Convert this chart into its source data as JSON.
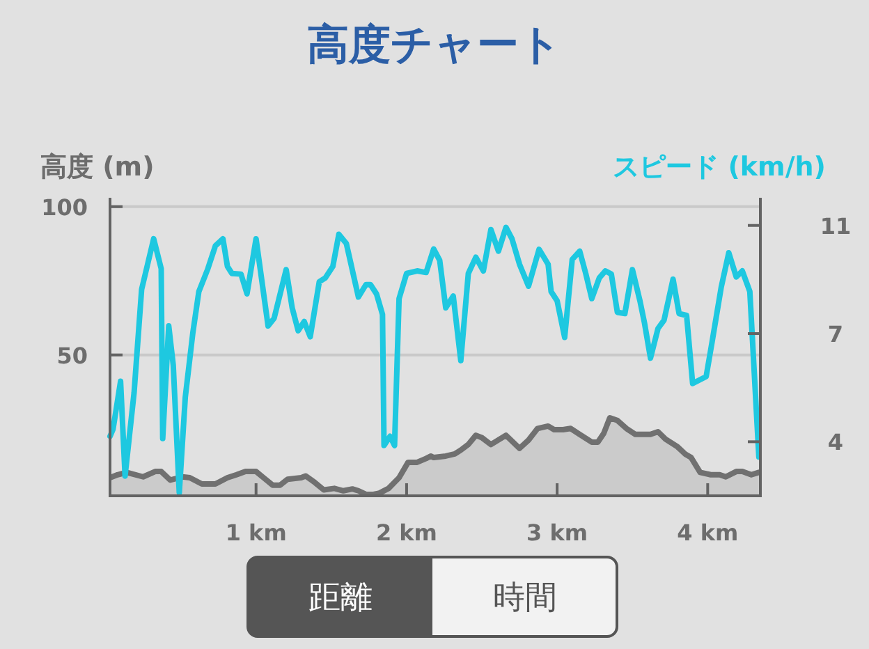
{
  "chart_data": {
    "type": "line",
    "title": "高度チャート",
    "ylabel": "高度 (m)",
    "y2label": "スピード (km/h)",
    "annotations": [
      "距離",
      "時間"
    ],
    "xlim": [
      0.03,
      4.35
    ],
    "xticks": [
      {
        "value": 1,
        "label": "1 km"
      },
      {
        "value": 2,
        "label": "2 km"
      },
      {
        "value": 3,
        "label": "3 km"
      },
      {
        "value": 4,
        "label": "4 km"
      }
    ],
    "ylim": [
      2.5,
      103
    ],
    "yticks": [
      50,
      100
    ],
    "y2lim": [
      2.3,
      11.67
    ],
    "y2ticks": [
      {
        "value": 4,
        "label": "4"
      },
      {
        "value": 7.4,
        "label": "7"
      },
      {
        "value": 10.8,
        "label": "11"
      }
    ],
    "grid": "y",
    "series": [
      {
        "type": "area",
        "color": "#707070",
        "x": [
          0.03,
          0.08,
          0.14,
          0.25,
          0.33,
          0.37,
          0.43,
          0.51,
          0.56,
          0.64,
          0.73,
          0.81,
          0.87,
          0.93,
          1.0,
          1.05,
          1.11,
          1.16,
          1.21,
          1.3,
          1.33,
          1.39,
          1.45,
          1.52,
          1.58,
          1.64,
          1.68,
          1.73,
          1.78,
          1.82,
          1.88,
          1.95,
          2.01,
          2.07,
          2.13,
          2.16,
          2.18,
          2.26,
          2.32,
          2.36,
          2.41,
          2.46,
          2.5,
          2.56,
          2.66,
          2.75,
          2.81,
          2.87,
          2.94,
          2.98,
          3.04,
          3.09,
          3.15,
          3.23,
          3.27,
          3.31,
          3.35,
          3.4,
          3.46,
          3.52,
          3.62,
          3.67,
          3.72,
          3.8,
          3.85,
          3.89,
          3.95,
          4.02,
          4.08,
          4.12,
          4.19,
          4.23,
          4.29,
          4.34
        ],
        "values": [
          8.6,
          9.6,
          10.4,
          8.9,
          10.7,
          10.7,
          7.8,
          8.9,
          8.6,
          6.5,
          6.5,
          8.6,
          9.6,
          10.7,
          10.7,
          8.6,
          6.1,
          6.1,
          8.1,
          8.6,
          9.2,
          7.0,
          4.5,
          5.0,
          4.2,
          4.8,
          4.2,
          3.0,
          3.0,
          3.4,
          5.0,
          8.6,
          13.8,
          13.8,
          15.1,
          15.9,
          15.4,
          15.9,
          16.6,
          17.9,
          19.8,
          22.9,
          22.1,
          19.8,
          22.9,
          18.5,
          21.3,
          25.2,
          26.0,
          24.8,
          24.8,
          25.2,
          23.2,
          20.6,
          20.6,
          23.6,
          28.8,
          27.9,
          25.2,
          23.2,
          23.2,
          24.1,
          21.6,
          19.0,
          16.6,
          15.4,
          10.4,
          9.6,
          9.6,
          8.9,
          10.7,
          10.7,
          9.6,
          10.4
        ]
      },
      {
        "axis": "y2",
        "color": "#1ec8e0",
        "x": [
          0.03,
          0.05,
          0.1,
          0.13,
          0.19,
          0.24,
          0.32,
          0.37,
          0.38,
          0.42,
          0.45,
          0.49,
          0.53,
          0.58,
          0.62,
          0.68,
          0.73,
          0.78,
          0.81,
          0.84,
          0.9,
          0.94,
          1.0,
          1.08,
          1.12,
          1.2,
          1.24,
          1.28,
          1.32,
          1.36,
          1.42,
          1.46,
          1.51,
          1.55,
          1.6,
          1.68,
          1.73,
          1.76,
          1.8,
          1.84,
          1.85,
          1.89,
          1.92,
          1.95,
          2.0,
          2.07,
          2.13,
          2.18,
          2.22,
          2.26,
          2.31,
          2.36,
          2.41,
          2.46,
          2.51,
          2.56,
          2.61,
          2.66,
          2.7,
          2.75,
          2.81,
          2.88,
          2.94,
          2.96,
          3.0,
          3.05,
          3.1,
          3.15,
          3.19,
          3.23,
          3.28,
          3.32,
          3.36,
          3.4,
          3.45,
          3.5,
          3.55,
          3.58,
          3.62,
          3.67,
          3.71,
          3.77,
          3.81,
          3.86,
          3.9,
          3.99,
          4.03,
          4.09,
          4.14,
          4.19,
          4.23,
          4.28,
          4.34
        ],
        "values": [
          4.17,
          4.39,
          5.9,
          2.92,
          5.55,
          8.79,
          10.38,
          9.44,
          4.1,
          7.64,
          6.41,
          2.4,
          5.4,
          7.42,
          8.72,
          9.44,
          10.16,
          10.38,
          9.51,
          9.29,
          9.27,
          8.65,
          10.38,
          7.64,
          7.88,
          9.41,
          8.21,
          7.49,
          7.78,
          7.3,
          9.03,
          9.15,
          9.51,
          10.52,
          10.23,
          8.55,
          8.94,
          8.94,
          8.65,
          8.0,
          3.88,
          4.17,
          3.88,
          8.5,
          9.29,
          9.37,
          9.32,
          10.06,
          9.7,
          8.21,
          8.58,
          6.55,
          9.29,
          9.8,
          9.37,
          10.67,
          9.99,
          10.74,
          10.38,
          9.58,
          8.89,
          10.05,
          9.58,
          8.72,
          8.43,
          7.28,
          9.73,
          9.99,
          9.29,
          8.5,
          9.15,
          9.37,
          9.27,
          8.07,
          8.03,
          9.41,
          8.43,
          7.74,
          6.63,
          7.56,
          7.82,
          9.11,
          8.03,
          7.97,
          5.83,
          6.05,
          7.16,
          8.86,
          9.94,
          9.18,
          9.37,
          8.72,
          3.52
        ]
      }
    ]
  }
}
